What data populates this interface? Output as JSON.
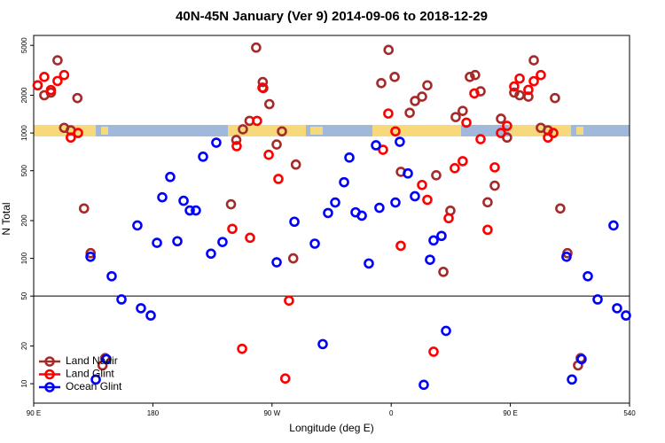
{
  "chart_data": {
    "type": "scatter",
    "title": "40N-45N January (Ver 9)   2014-09-06 to 2018-12-29",
    "x_label": "Longitude (deg E)",
    "y_label": "N Total",
    "log_y": true,
    "xlim": [
      90,
      540
    ],
    "xticks": [
      {
        "value": 90,
        "label": "90 E"
      },
      180,
      {
        "value": 270,
        "label": "90 W"
      },
      {
        "value": 360,
        "label": "0"
      },
      {
        "value": 450,
        "label": "90 E"
      },
      540
    ],
    "ylim": [
      7,
      6000
    ],
    "yticks": [
      10,
      20,
      50,
      100,
      200,
      500,
      1000,
      2000,
      5000
    ],
    "reference_line": 50,
    "legend": "bottom-left",
    "series": [
      {
        "name": "Land Nadir",
        "color": "#a52a2a",
        "x": [
          93,
          98,
          103,
          108,
          113,
          118,
          123,
          128,
          133,
          142,
          144,
          239,
          243,
          248,
          253,
          258,
          263,
          263.4,
          268,
          273.5,
          277.5,
          286,
          288,
          352.5,
          358,
          362.6,
          367.3,
          374,
          378,
          383.3,
          387.3,
          394,
          399.4,
          404.7,
          408.7,
          414,
          419.4,
          423.4,
          427.5,
          432.8,
          438.2,
          442.9,
          447.5,
          452.9,
          457,
          463.6,
          467.7,
          473,
          478.4,
          483.7,
          487.7,
          493.1,
          501.1,
          503.1
        ],
        "values": [
          2400,
          2000,
          2100,
          3800,
          1100,
          1050,
          1900,
          250,
          110,
          14,
          16,
          270,
          880,
          1070,
          1250,
          4800,
          2550,
          2280,
          1700,
          810,
          1030,
          100,
          560,
          2500,
          4600,
          2800,
          490,
          1450,
          1800,
          1950,
          2400,
          460,
          78,
          240,
          1340,
          1500,
          2800,
          2900,
          2150,
          280,
          380,
          1300,
          920,
          2100,
          2000,
          1950,
          3800,
          1100,
          1050,
          1900,
          250,
          110,
          14,
          16
        ]
      },
      {
        "name": "Land Glint",
        "color": "#ff0000",
        "x": [
          93,
          98,
          103,
          108,
          113,
          118,
          123.5,
          240,
          243.3,
          247.4,
          253.4,
          258.7,
          262.8,
          267.5,
          274.8,
          280,
          282.8,
          353.8,
          357.8,
          363.2,
          367.2,
          383.3,
          387.3,
          392,
          403.4,
          408,
          414,
          416.8,
          422.8,
          427.5,
          432.8,
          438.2,
          442.9,
          447.5,
          452.9,
          457,
          463.6,
          467.7,
          473,
          478.4,
          482.4
        ],
        "values": [
          2400,
          2800,
          2200,
          2600,
          2900,
          920,
          1000,
          172,
          785,
          19,
          146,
          1250,
          2300,
          670,
          430,
          11,
          46,
          735,
          1430,
          1030,
          126,
          385,
          293,
          18,
          209,
          524,
          596,
          1210,
          2070,
          893,
          169,
          532,
          1000,
          1140,
          2350,
          2720,
          2210,
          2590,
          2900,
          920,
          1000
        ]
      },
      {
        "name": "Ocean Glint",
        "color": "#0000ff",
        "x": [
          132.9,
          136.9,
          144.9,
          148.9,
          156.3,
          168.3,
          171,
          178.4,
          183.1,
          187.1,
          193.1,
          198.5,
          203.2,
          207.9,
          212.5,
          217.9,
          223.9,
          227.9,
          232.6,
          273.5,
          286.9,
          302.3,
          308.3,
          312.3,
          317.7,
          324.4,
          328.4,
          333.1,
          337.8,
          343.1,
          348.5,
          351.1,
          363.2,
          366.5,
          372.6,
          377.9,
          384.6,
          389.3,
          392,
          398,
          401.4,
          492.4,
          496.5,
          503.8,
          508.5,
          515.9,
          527.9,
          530.6,
          537.3
        ],
        "values": [
          103,
          10.8,
          15.7,
          72,
          47,
          183,
          40,
          35,
          133,
          307,
          446,
          137,
          288,
          241,
          241,
          647,
          109,
          837,
          135,
          93,
          196,
          131,
          20.7,
          230,
          279,
          405,
          637,
          233,
          219,
          91,
          798,
          253,
          279,
          851,
          476,
          313,
          9.8,
          97.5,
          139,
          151,
          26.4,
          103,
          10.8,
          15.7,
          72,
          47,
          183,
          40,
          35
        ]
      }
    ]
  }
}
